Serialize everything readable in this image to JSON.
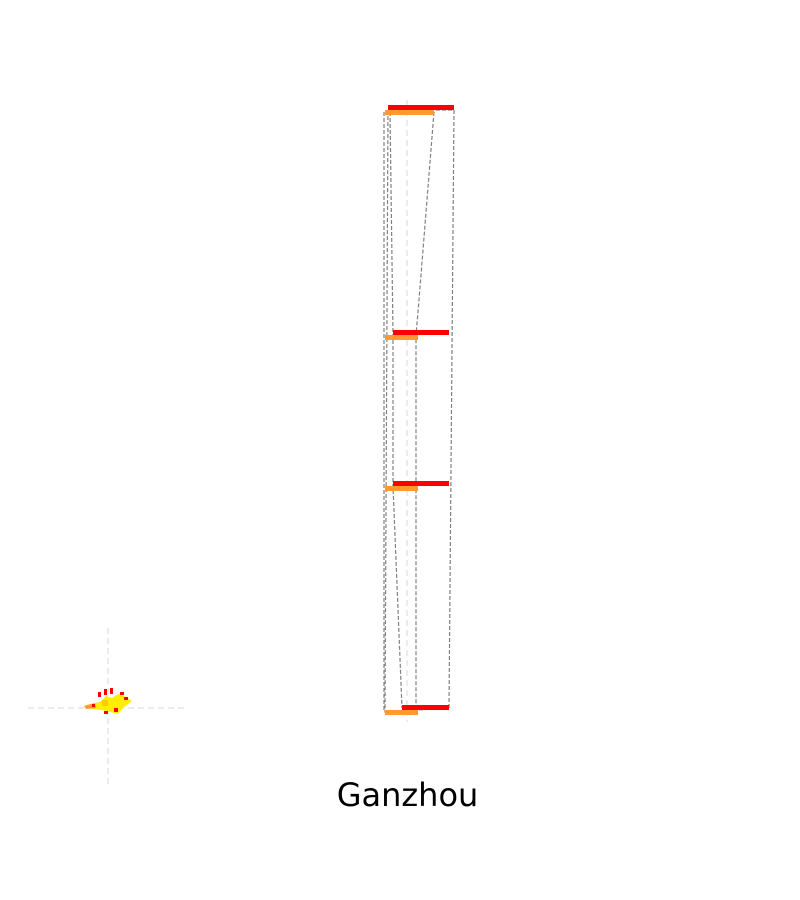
{
  "title": "Ganzhou",
  "colors": {
    "background": "#ffffff",
    "bar_red": "#ff0000",
    "bar_orange": "#ff9933",
    "outline": "#808080",
    "guide": "#d9d9d9",
    "swatch_yellow": "#ffee00"
  },
  "icons": {
    "legend_marker": "bird-icon"
  }
}
